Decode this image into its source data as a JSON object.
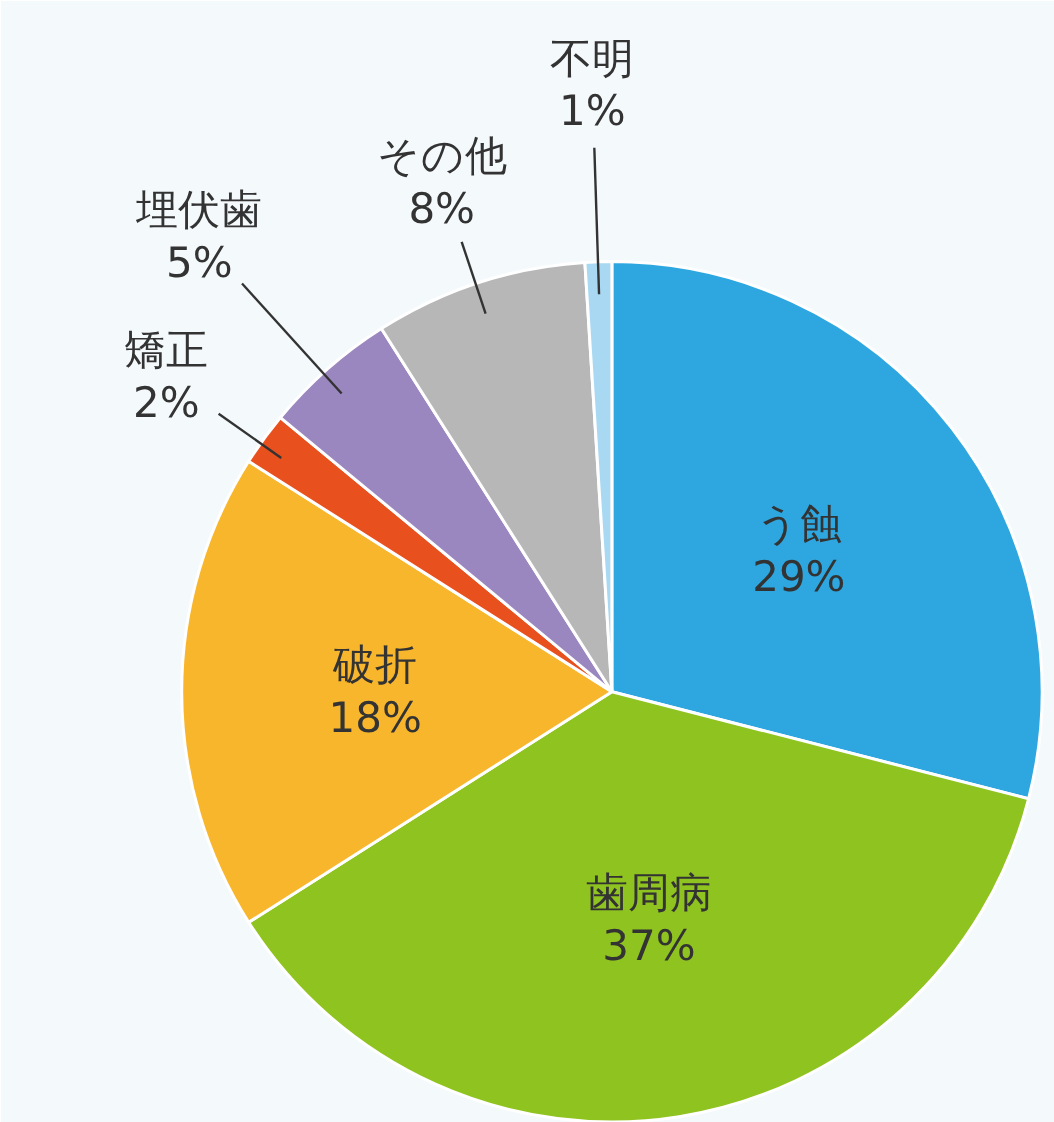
{
  "chart_data": {
    "type": "pie",
    "categories": [
      "う蝕",
      "歯周病",
      "破折",
      "矯正",
      "埋伏歯",
      "その他",
      "不明"
    ],
    "values": [
      29,
      37,
      18,
      2,
      5,
      8,
      1
    ],
    "colors": [
      "#2ea7e0",
      "#8fc31f",
      "#f8b62d",
      "#e8501e",
      "#9b87bf",
      "#b7b7b7",
      "#a9d9f2"
    ],
    "value_labels": [
      "29%",
      "37%",
      "18%",
      "2%",
      "5%",
      "8%",
      "1%"
    ]
  }
}
